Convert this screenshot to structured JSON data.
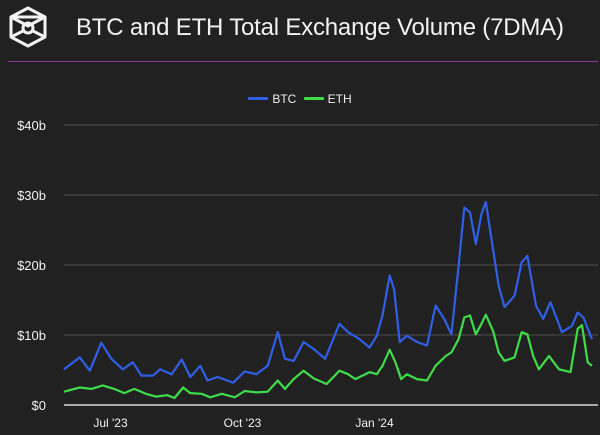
{
  "header": {
    "title": "BTC and ETH Total Exchange Volume (7DMA)",
    "logo": "the-block-cube-logo"
  },
  "colors": {
    "background": "#222122",
    "divider": "#8e3a9c",
    "btc": "#2f5fe6",
    "eth": "#3fdc49",
    "grid": "#555555"
  },
  "chart_data": {
    "type": "line",
    "title": "BTC and ETH Total Exchange Volume (7DMA)",
    "legend": {
      "placement": "top-center",
      "entries": [
        "BTC",
        "ETH"
      ]
    },
    "grid": true,
    "xlim": [
      "2023-05-31",
      "2024-06-02"
    ],
    "ylim": [
      0,
      40
    ],
    "y_unit": "billion USD",
    "x_ticks": [
      {
        "date": "2023-07-01",
        "label": "Jul '23"
      },
      {
        "date": "2023-10-01",
        "label": "Oct '23"
      },
      {
        "date": "2024-01-01",
        "label": "Jan '24"
      }
    ],
    "y_ticks": [
      {
        "value": 0,
        "label": "$0"
      },
      {
        "value": 10,
        "label": "$10b"
      },
      {
        "value": 20,
        "label": "$20b"
      },
      {
        "value": 30,
        "label": "$30b"
      },
      {
        "value": 40,
        "label": "$40b"
      }
    ],
    "series": [
      {
        "name": "BTC",
        "color": "#2f5fe6",
        "points": [
          [
            "2023-05-31",
            5.1
          ],
          [
            "2023-06-11",
            6.8
          ],
          [
            "2023-06-18",
            4.9
          ],
          [
            "2023-06-26",
            8.9
          ],
          [
            "2023-07-03",
            6.6
          ],
          [
            "2023-07-11",
            5.1
          ],
          [
            "2023-07-18",
            6.1
          ],
          [
            "2023-07-24",
            4.2
          ],
          [
            "2023-08-01",
            4.2
          ],
          [
            "2023-08-06",
            5.1
          ],
          [
            "2023-08-14",
            4.4
          ],
          [
            "2023-08-21",
            6.5
          ],
          [
            "2023-08-27",
            4.0
          ],
          [
            "2023-09-03",
            5.6
          ],
          [
            "2023-09-08",
            3.5
          ],
          [
            "2023-09-15",
            4.0
          ],
          [
            "2023-09-26",
            3.2
          ],
          [
            "2023-10-04",
            4.8
          ],
          [
            "2023-10-12",
            4.4
          ],
          [
            "2023-10-20",
            5.6
          ],
          [
            "2023-10-27",
            10.4
          ],
          [
            "2023-11-01",
            6.6
          ],
          [
            "2023-11-07",
            6.3
          ],
          [
            "2023-11-14",
            9.0
          ],
          [
            "2023-11-21",
            8.0
          ],
          [
            "2023-11-29",
            6.6
          ],
          [
            "2023-12-09",
            11.6
          ],
          [
            "2023-12-15",
            10.4
          ],
          [
            "2023-12-23",
            9.4
          ],
          [
            "2023-12-30",
            8.2
          ],
          [
            "2024-01-04",
            9.9
          ],
          [
            "2024-01-08",
            12.8
          ],
          [
            "2024-01-13",
            18.5
          ],
          [
            "2024-01-16",
            16.6
          ],
          [
            "2024-01-20",
            9.0
          ],
          [
            "2024-01-25",
            9.9
          ],
          [
            "2024-02-01",
            9.0
          ],
          [
            "2024-02-08",
            8.5
          ],
          [
            "2024-02-14",
            14.2
          ],
          [
            "2024-02-20",
            12.3
          ],
          [
            "2024-02-25",
            10.1
          ],
          [
            "2024-03-01",
            19.9
          ],
          [
            "2024-03-05",
            28.2
          ],
          [
            "2024-03-09",
            27.5
          ],
          [
            "2024-03-13",
            23.0
          ],
          [
            "2024-03-17",
            27.3
          ],
          [
            "2024-03-20",
            29.0
          ],
          [
            "2024-03-25",
            22.3
          ],
          [
            "2024-03-29",
            17.0
          ],
          [
            "2024-04-02",
            14.0
          ],
          [
            "2024-04-09",
            15.6
          ],
          [
            "2024-04-14",
            20.4
          ],
          [
            "2024-04-18",
            21.3
          ],
          [
            "2024-04-24",
            14.2
          ],
          [
            "2024-04-29",
            12.3
          ],
          [
            "2024-05-04",
            14.7
          ],
          [
            "2024-05-12",
            10.4
          ],
          [
            "2024-05-19",
            11.3
          ],
          [
            "2024-05-23",
            13.2
          ],
          [
            "2024-05-27",
            12.5
          ],
          [
            "2024-06-02",
            9.4
          ]
        ]
      },
      {
        "name": "ETH",
        "color": "#3fdc49",
        "points": [
          [
            "2023-05-31",
            1.9
          ],
          [
            "2023-06-11",
            2.5
          ],
          [
            "2023-06-19",
            2.3
          ],
          [
            "2023-06-27",
            2.8
          ],
          [
            "2023-07-05",
            2.3
          ],
          [
            "2023-07-12",
            1.7
          ],
          [
            "2023-07-19",
            2.3
          ],
          [
            "2023-07-27",
            1.6
          ],
          [
            "2023-08-03",
            1.2
          ],
          [
            "2023-08-11",
            1.4
          ],
          [
            "2023-08-16",
            1.0
          ],
          [
            "2023-08-22",
            2.5
          ],
          [
            "2023-08-27",
            1.7
          ],
          [
            "2023-09-04",
            1.6
          ],
          [
            "2023-09-10",
            1.1
          ],
          [
            "2023-09-18",
            1.6
          ],
          [
            "2023-09-27",
            1.1
          ],
          [
            "2023-10-04",
            2.0
          ],
          [
            "2023-10-12",
            1.8
          ],
          [
            "2023-10-20",
            1.9
          ],
          [
            "2023-10-27",
            3.5
          ],
          [
            "2023-11-01",
            2.3
          ],
          [
            "2023-11-07",
            3.7
          ],
          [
            "2023-11-14",
            4.9
          ],
          [
            "2023-11-21",
            3.8
          ],
          [
            "2023-11-30",
            3.0
          ],
          [
            "2023-12-09",
            4.9
          ],
          [
            "2023-12-15",
            4.4
          ],
          [
            "2023-12-20",
            3.7
          ],
          [
            "2023-12-30",
            4.7
          ],
          [
            "2024-01-04",
            4.4
          ],
          [
            "2024-01-08",
            5.6
          ],
          [
            "2024-01-13",
            7.9
          ],
          [
            "2024-01-17",
            6.1
          ],
          [
            "2024-01-21",
            3.7
          ],
          [
            "2024-01-25",
            4.4
          ],
          [
            "2024-02-01",
            3.7
          ],
          [
            "2024-02-08",
            3.5
          ],
          [
            "2024-02-14",
            5.6
          ],
          [
            "2024-02-21",
            7.0
          ],
          [
            "2024-02-25",
            7.5
          ],
          [
            "2024-03-01",
            9.4
          ],
          [
            "2024-03-05",
            12.5
          ],
          [
            "2024-03-09",
            12.8
          ],
          [
            "2024-03-13",
            10.1
          ],
          [
            "2024-03-17",
            11.6
          ],
          [
            "2024-03-20",
            12.9
          ],
          [
            "2024-03-25",
            10.6
          ],
          [
            "2024-03-29",
            7.5
          ],
          [
            "2024-04-02",
            6.3
          ],
          [
            "2024-04-09",
            6.8
          ],
          [
            "2024-04-14",
            10.4
          ],
          [
            "2024-04-18",
            10.1
          ],
          [
            "2024-04-22",
            7.0
          ],
          [
            "2024-04-26",
            5.1
          ],
          [
            "2024-05-03",
            7.0
          ],
          [
            "2024-05-10",
            5.1
          ],
          [
            "2024-05-18",
            4.7
          ],
          [
            "2024-05-23",
            10.9
          ],
          [
            "2024-05-26",
            11.4
          ],
          [
            "2024-05-30",
            6.1
          ],
          [
            "2024-06-02",
            5.6
          ]
        ]
      }
    ]
  }
}
